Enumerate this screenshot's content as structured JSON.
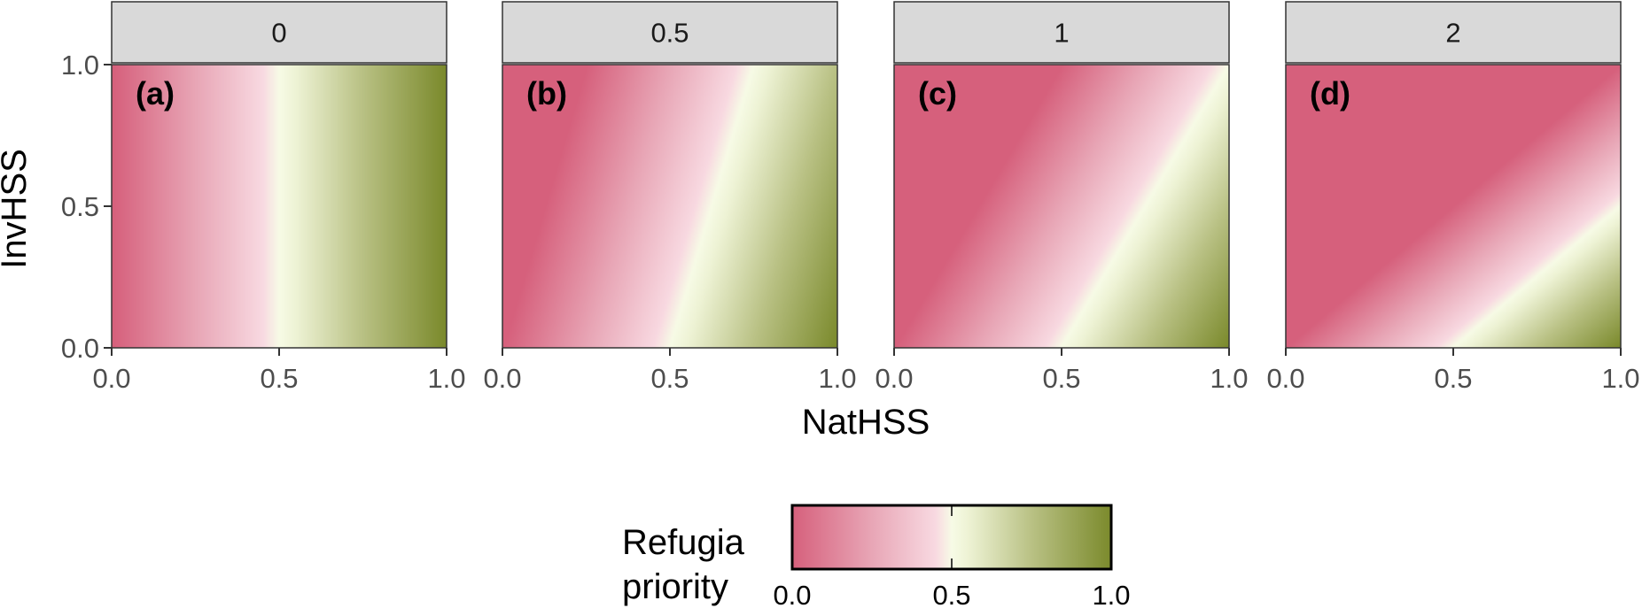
{
  "chart_data": {
    "type": "heatmap",
    "title": "",
    "xlabel": "NatHSS",
    "ylabel": "InvHSS",
    "xlim": [
      0,
      1
    ],
    "ylim": [
      0,
      1
    ],
    "x_ticks": [
      "0.0",
      "0.5",
      "1.0"
    ],
    "y_ticks": [
      "0.0",
      "0.5",
      "1.0"
    ],
    "grid": false,
    "facets": [
      {
        "strip": "0",
        "tag": "(a)",
        "invhss_weight": 0
      },
      {
        "strip": "0.5",
        "tag": "(b)",
        "invhss_weight": 0.5
      },
      {
        "strip": "1",
        "tag": "(c)",
        "invhss_weight": 1
      },
      {
        "strip": "2",
        "tag": "(d)",
        "invhss_weight": 2
      }
    ],
    "value_formula": "priority = clamp(0.5 + (NatHSS - 0.5) - weight * InvHSS / 2, 0, 1)",
    "legend": {
      "title_lines": [
        "Refugia",
        "priority"
      ],
      "ticks": [
        "0.0",
        "0.5",
        "1.0"
      ],
      "range": [
        0,
        1
      ],
      "placement": "bottom",
      "colors": [
        {
          "value": 0,
          "color": "#d6607c"
        },
        {
          "value": 0.25,
          "color": "#e8a6b6"
        },
        {
          "value": 0.45,
          "color": "#f8d9e1"
        },
        {
          "value": 0.5,
          "color": "#f7fbe6"
        },
        {
          "value": 0.55,
          "color": "#eef3d5"
        },
        {
          "value": 0.75,
          "color": "#b9c184"
        },
        {
          "value": 1,
          "color": "#7b8a2c"
        }
      ]
    }
  }
}
